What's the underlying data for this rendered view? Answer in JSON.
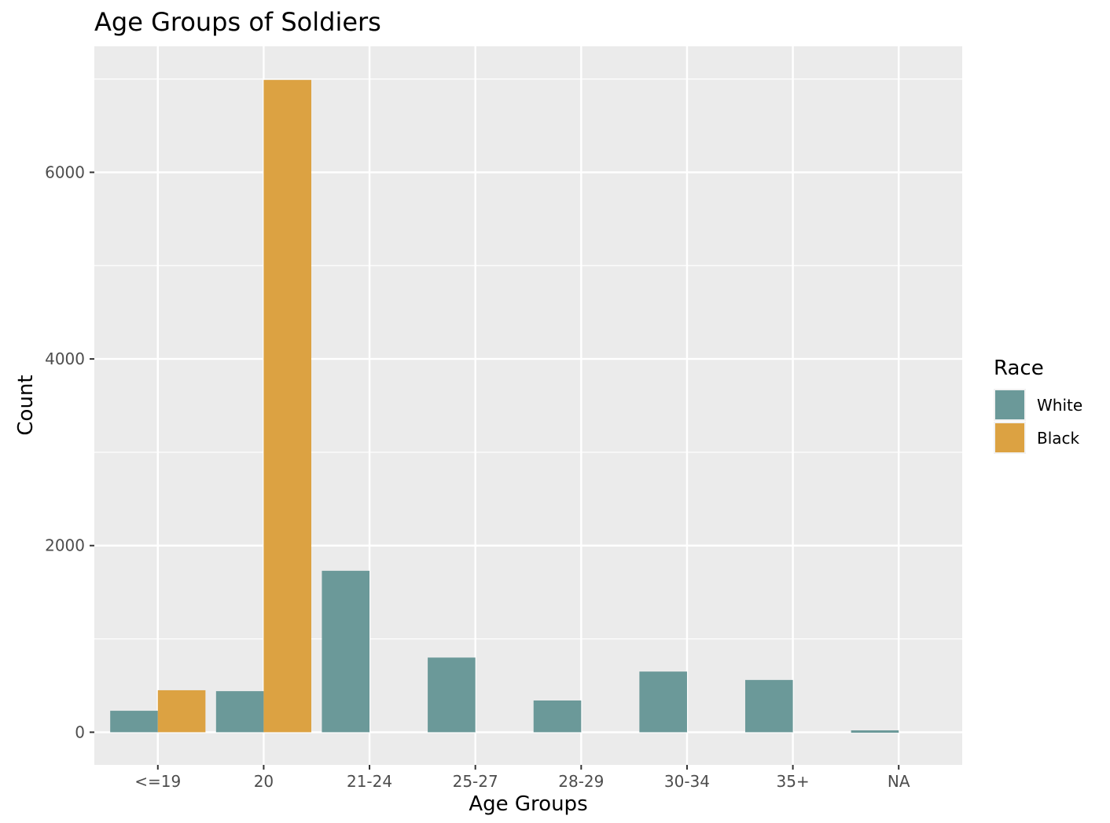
{
  "chart_data": {
    "type": "bar",
    "title": "Age Groups of Soldiers",
    "xlabel": "Age Groups",
    "ylabel": "Count",
    "categories": [
      "<=19",
      "20",
      "21-24",
      "25-27",
      "28-29",
      "30-34",
      "35+",
      "NA"
    ],
    "yticks": [
      "0",
      "2000",
      "4000",
      "6000"
    ],
    "ylim": [
      -350,
      7350
    ],
    "grid": true,
    "legend": {
      "title": "Race",
      "position": "right"
    },
    "series": [
      {
        "name": "White",
        "color": "#6b9999",
        "values": [
          230,
          440,
          1730,
          800,
          340,
          650,
          560,
          20
        ]
      },
      {
        "name": "Black",
        "color": "#dca242",
        "values": [
          450,
          6990,
          null,
          null,
          null,
          null,
          null,
          null
        ]
      }
    ]
  }
}
